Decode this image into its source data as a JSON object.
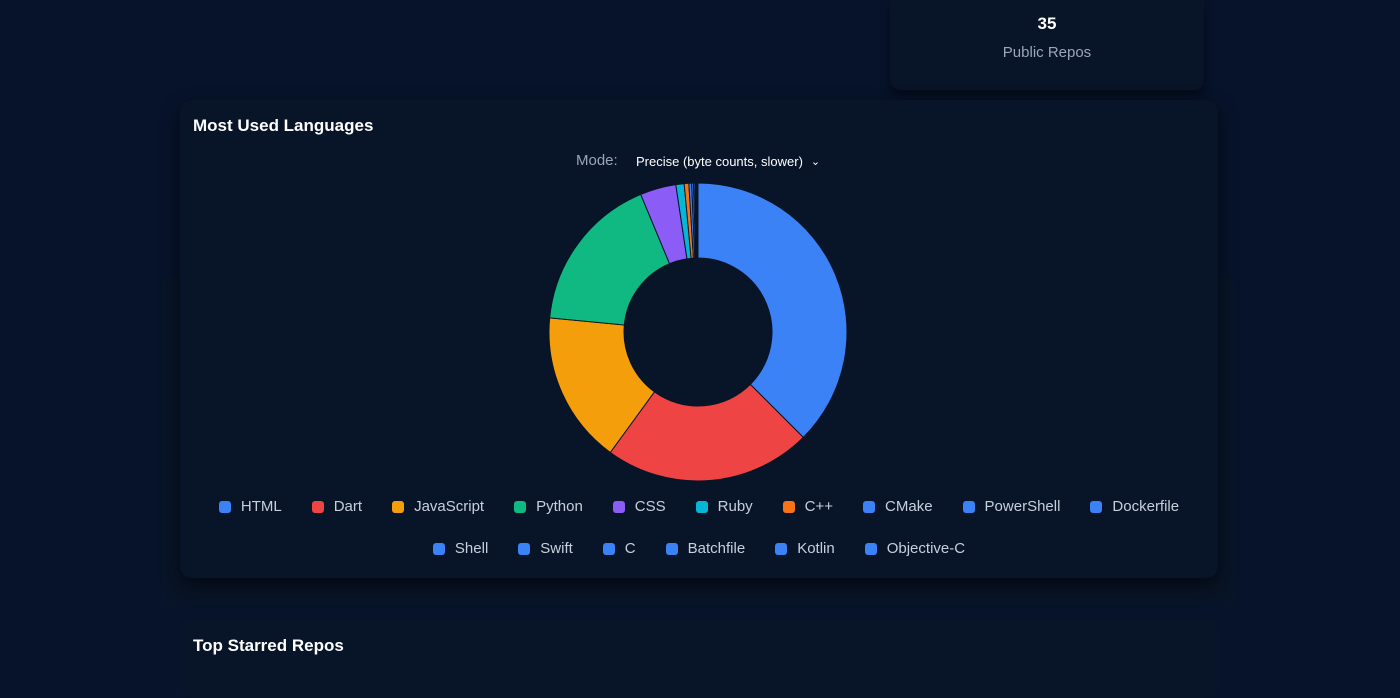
{
  "stats": {
    "public_repos_value": "35",
    "public_repos_label": "Public Repos"
  },
  "languages_card": {
    "title": "Most Used Languages",
    "mode_label": "Mode:",
    "mode_value": "Precise (byte counts, slower)"
  },
  "top_starred": {
    "title": "Top Starred Repos"
  },
  "chart_data": {
    "type": "pie",
    "donut": true,
    "title": "Most Used Languages",
    "legend_position": "bottom",
    "categories": [
      "HTML",
      "Dart",
      "JavaScript",
      "Python",
      "CSS",
      "Ruby",
      "C++",
      "CMake",
      "PowerShell",
      "Dockerfile",
      "Shell",
      "Swift",
      "C",
      "Batchfile",
      "Kotlin",
      "Objective-C"
    ],
    "values": [
      37.5,
      22.5,
      16.5,
      17.2,
      3.9,
      0.9,
      0.5,
      0.3,
      0.2,
      0.15,
      0.1,
      0.08,
      0.06,
      0.04,
      0.03,
      0.02
    ],
    "colors": [
      "#3b82f6",
      "#ef4444",
      "#f59e0b",
      "#10b981",
      "#8b5cf6",
      "#06b6d4",
      "#f97316",
      "#3b82f6",
      "#3b82f6",
      "#3b82f6",
      "#3b82f6",
      "#3b82f6",
      "#3b82f6",
      "#3b82f6",
      "#3b82f6",
      "#3b82f6"
    ]
  }
}
